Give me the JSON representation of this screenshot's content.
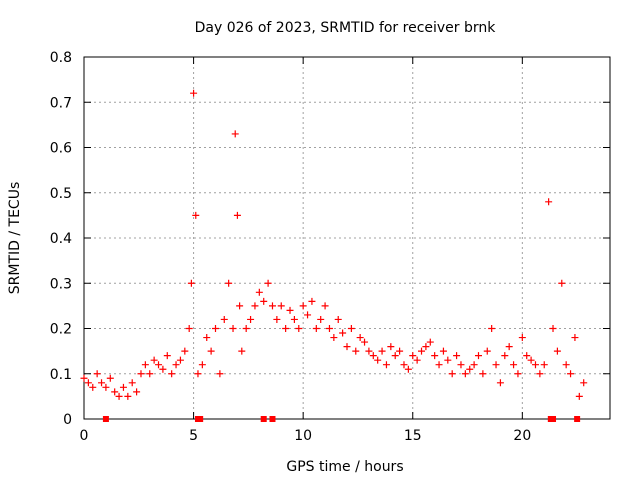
{
  "chart_data": {
    "type": "scatter",
    "title": "Day 026 of 2023, SRMTID for receiver brnk",
    "xlabel": "GPS time / hours",
    "ylabel": "SRMTID / TECUs",
    "xlim": [
      0,
      24
    ],
    "ylim": [
      0,
      0.8
    ],
    "x_ticks": [
      0,
      5,
      10,
      15,
      20
    ],
    "x_tick_labels": [
      "0",
      "5",
      "10",
      "15",
      "20"
    ],
    "y_ticks": [
      0,
      0.1,
      0.2,
      0.3,
      0.4,
      0.5,
      0.6,
      0.7,
      0.8
    ],
    "y_tick_labels": [
      "0",
      "0.1",
      "0.2",
      "0.3",
      "0.4",
      "0.5",
      "0.6",
      "0.7",
      "0.8"
    ],
    "grid": true,
    "marker": "+",
    "series": [
      {
        "name": "SRMTID",
        "color": "#ff0000",
        "x": [
          0.0,
          0.2,
          0.4,
          0.6,
          0.8,
          1.0,
          1.2,
          1.4,
          1.6,
          1.8,
          2.0,
          2.2,
          2.4,
          2.6,
          2.8,
          3.0,
          3.2,
          3.4,
          3.6,
          3.8,
          4.0,
          4.2,
          4.4,
          4.6,
          4.8,
          4.9,
          5.0,
          5.1,
          5.2,
          5.4,
          5.6,
          5.8,
          6.0,
          6.2,
          6.4,
          6.6,
          6.8,
          6.9,
          7.0,
          7.1,
          7.2,
          7.4,
          7.6,
          7.8,
          8.0,
          8.2,
          8.4,
          8.6,
          8.8,
          9.0,
          9.2,
          9.4,
          9.6,
          9.8,
          10.0,
          10.2,
          10.4,
          10.6,
          10.8,
          11.0,
          11.2,
          11.4,
          11.6,
          11.8,
          12.0,
          12.2,
          12.4,
          12.6,
          12.8,
          13.0,
          13.2,
          13.4,
          13.6,
          13.8,
          14.0,
          14.2,
          14.4,
          14.6,
          14.8,
          15.0,
          15.2,
          15.4,
          15.6,
          15.8,
          16.0,
          16.2,
          16.4,
          16.6,
          16.8,
          17.0,
          17.2,
          17.4,
          17.6,
          17.8,
          18.0,
          18.2,
          18.4,
          18.6,
          18.8,
          19.0,
          19.2,
          19.4,
          19.6,
          19.8,
          20.0,
          20.2,
          20.4,
          20.6,
          20.8,
          21.0,
          21.2,
          21.4,
          21.6,
          21.8,
          22.0,
          22.2,
          22.4,
          22.6,
          22.8
        ],
        "y": [
          0.09,
          0.08,
          0.07,
          0.1,
          0.08,
          0.07,
          0.09,
          0.06,
          0.05,
          0.07,
          0.05,
          0.08,
          0.06,
          0.1,
          0.12,
          0.1,
          0.13,
          0.12,
          0.11,
          0.14,
          0.1,
          0.12,
          0.13,
          0.15,
          0.2,
          0.3,
          0.72,
          0.45,
          0.1,
          0.12,
          0.18,
          0.15,
          0.2,
          0.1,
          0.22,
          0.3,
          0.2,
          0.63,
          0.45,
          0.25,
          0.15,
          0.2,
          0.22,
          0.25,
          0.28,
          0.26,
          0.3,
          0.25,
          0.22,
          0.25,
          0.2,
          0.24,
          0.22,
          0.2,
          0.25,
          0.23,
          0.26,
          0.2,
          0.22,
          0.25,
          0.2,
          0.18,
          0.22,
          0.19,
          0.16,
          0.2,
          0.15,
          0.18,
          0.17,
          0.15,
          0.14,
          0.13,
          0.15,
          0.12,
          0.16,
          0.14,
          0.15,
          0.12,
          0.11,
          0.14,
          0.13,
          0.15,
          0.16,
          0.17,
          0.14,
          0.12,
          0.15,
          0.13,
          0.1,
          0.14,
          0.12,
          0.1,
          0.11,
          0.12,
          0.14,
          0.1,
          0.15,
          0.2,
          0.12,
          0.08,
          0.14,
          0.16,
          0.12,
          0.1,
          0.18,
          0.14,
          0.13,
          0.12,
          0.1,
          0.12,
          0.48,
          0.2,
          0.15,
          0.3,
          0.12,
          0.1,
          0.18,
          0.05,
          0.08
        ]
      }
    ],
    "zero_markers_x": [
      1.0,
      5.2,
      5.3,
      8.2,
      8.6,
      21.3,
      21.4,
      22.5
    ]
  }
}
